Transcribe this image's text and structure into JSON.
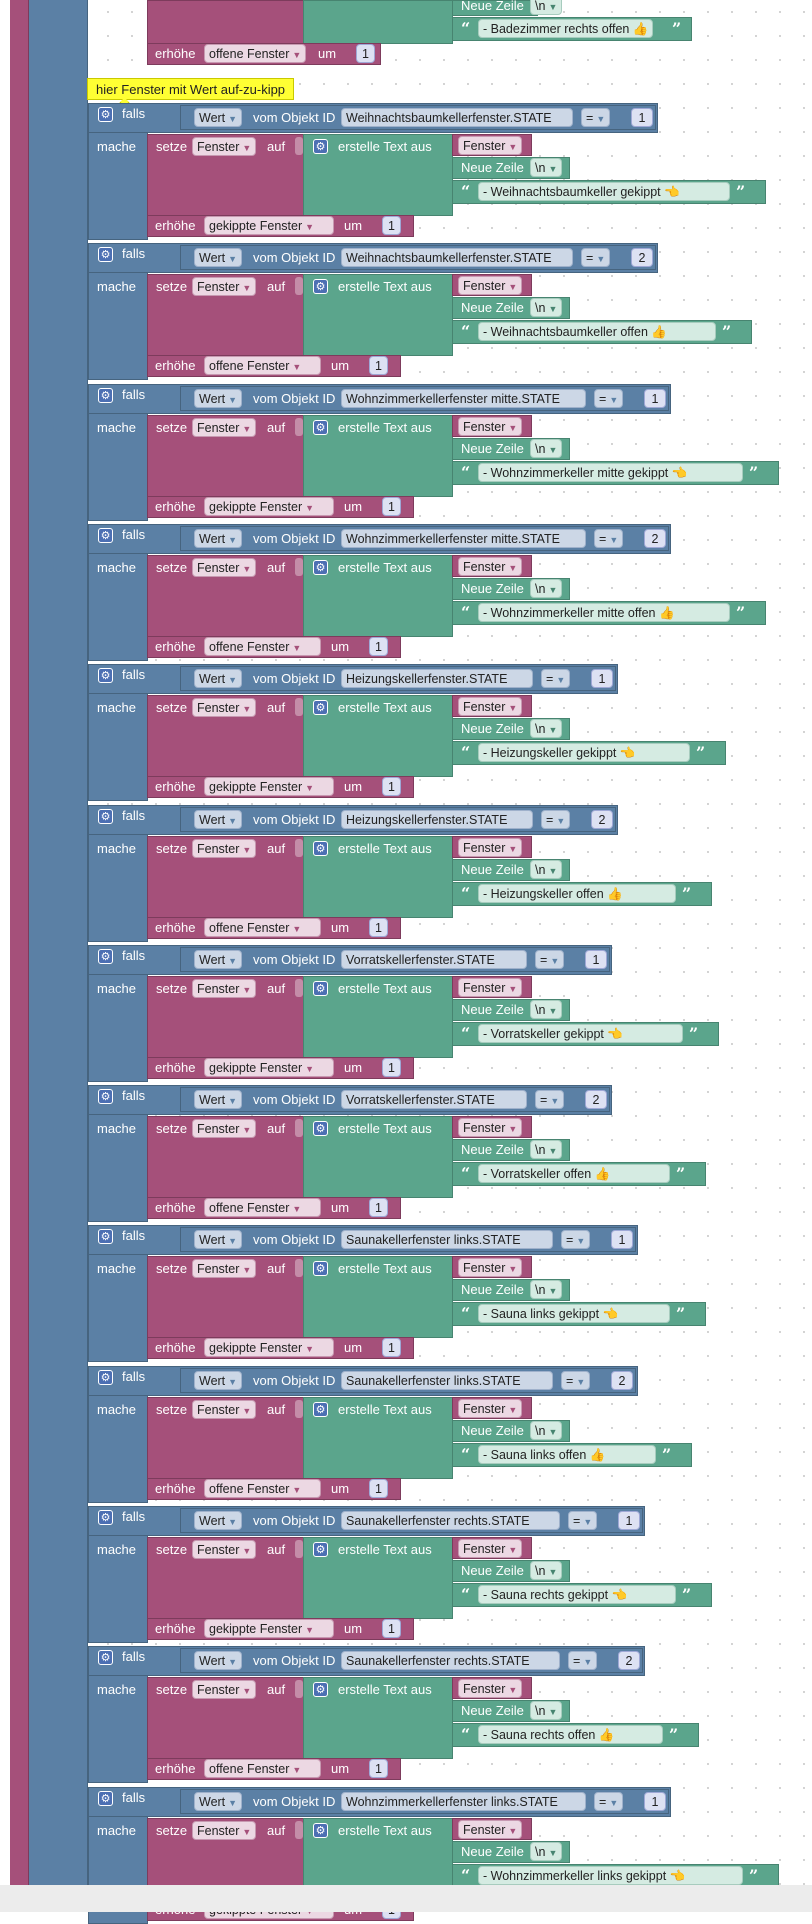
{
  "labels": {
    "falls": "falls",
    "mache": "mache",
    "setze": "setze",
    "auf": "auf",
    "erstelle": "erstelle Text aus",
    "wert": "Wert",
    "vom_objekt": "vom Objekt ID",
    "eq": "=",
    "fenster_var": "Fenster",
    "neue_zeile": "Neue Zeile",
    "newline": "\\n",
    "erhoehe": "erhöhe",
    "um": "um",
    "increment": "1"
  },
  "icons": {
    "gear": "gear-icon",
    "dropdown": "dropdown-arrow-icon",
    "quote_open": "quote-open-icon",
    "quote_close": "quote-close-icon"
  },
  "colors": {
    "logic": "#5b80a5",
    "variable": "#a5507a",
    "text": "#5ba58c",
    "comment": "#ffff33"
  },
  "comment": "hier Fenster mit Wert auf-zu-kipp",
  "top_partial": {
    "neue_zeile": "Neue Zeile",
    "newline": "\\n",
    "text": " - Badezimmer rechts offen 👍",
    "erhoehe_var": "offene Fenster",
    "amount": "1"
  },
  "blocks": [
    {
      "object_id": "Weihnachtsbaumkellerfenster.STATE",
      "value": "1",
      "text": " - Weihnachtsbaumkeller gekippt 👈",
      "counter": "gekippte Fenster"
    },
    {
      "object_id": "Weihnachtsbaumkellerfenster.STATE",
      "value": "2",
      "text": " - Weihnachtsbaumkeller offen 👍",
      "counter": "offene Fenster"
    },
    {
      "object_id": "Wohnzimmerkellerfenster mitte.STATE",
      "value": "1",
      "text": " - Wohnzimmerkeller mitte gekippt 👈",
      "counter": "gekippte Fenster"
    },
    {
      "object_id": "Wohnzimmerkellerfenster mitte.STATE",
      "value": "2",
      "text": " - Wohnzimmerkeller mitte offen 👍",
      "counter": "offene Fenster"
    },
    {
      "object_id": "Heizungskellerfenster.STATE",
      "value": "1",
      "text": " - Heizungskeller gekippt 👈",
      "counter": "gekippte Fenster"
    },
    {
      "object_id": "Heizungskellerfenster.STATE",
      "value": "2",
      "text": " - Heizungskeller offen 👍",
      "counter": "offene Fenster"
    },
    {
      "object_id": "Vorratskellerfenster.STATE",
      "value": "1",
      "text": " - Vorratskeller gekippt 👈",
      "counter": "gekippte Fenster"
    },
    {
      "object_id": "Vorratskellerfenster.STATE",
      "value": "2",
      "text": " - Vorratskeller offen 👍",
      "counter": "offene Fenster"
    },
    {
      "object_id": "Saunakellerfenster links.STATE",
      "value": "1",
      "text": " - Sauna links gekippt 👈",
      "counter": "gekippte Fenster"
    },
    {
      "object_id": "Saunakellerfenster links.STATE",
      "value": "2",
      "text": " - Sauna links offen 👍",
      "counter": "offene Fenster"
    },
    {
      "object_id": "Saunakellerfenster rechts.STATE",
      "value": "1",
      "text": " - Sauna rechts gekippt 👈",
      "counter": "gekippte Fenster"
    },
    {
      "object_id": "Saunakellerfenster rechts.STATE",
      "value": "2",
      "text": " - Sauna rechts offen 👍",
      "counter": "offene Fenster"
    },
    {
      "object_id": "Wohnzimmerkellerfenster links.STATE",
      "value": "1",
      "text": " - Wohnzimmerkeller links gekippt 👈",
      "counter": "gekippte Fenster"
    }
  ]
}
